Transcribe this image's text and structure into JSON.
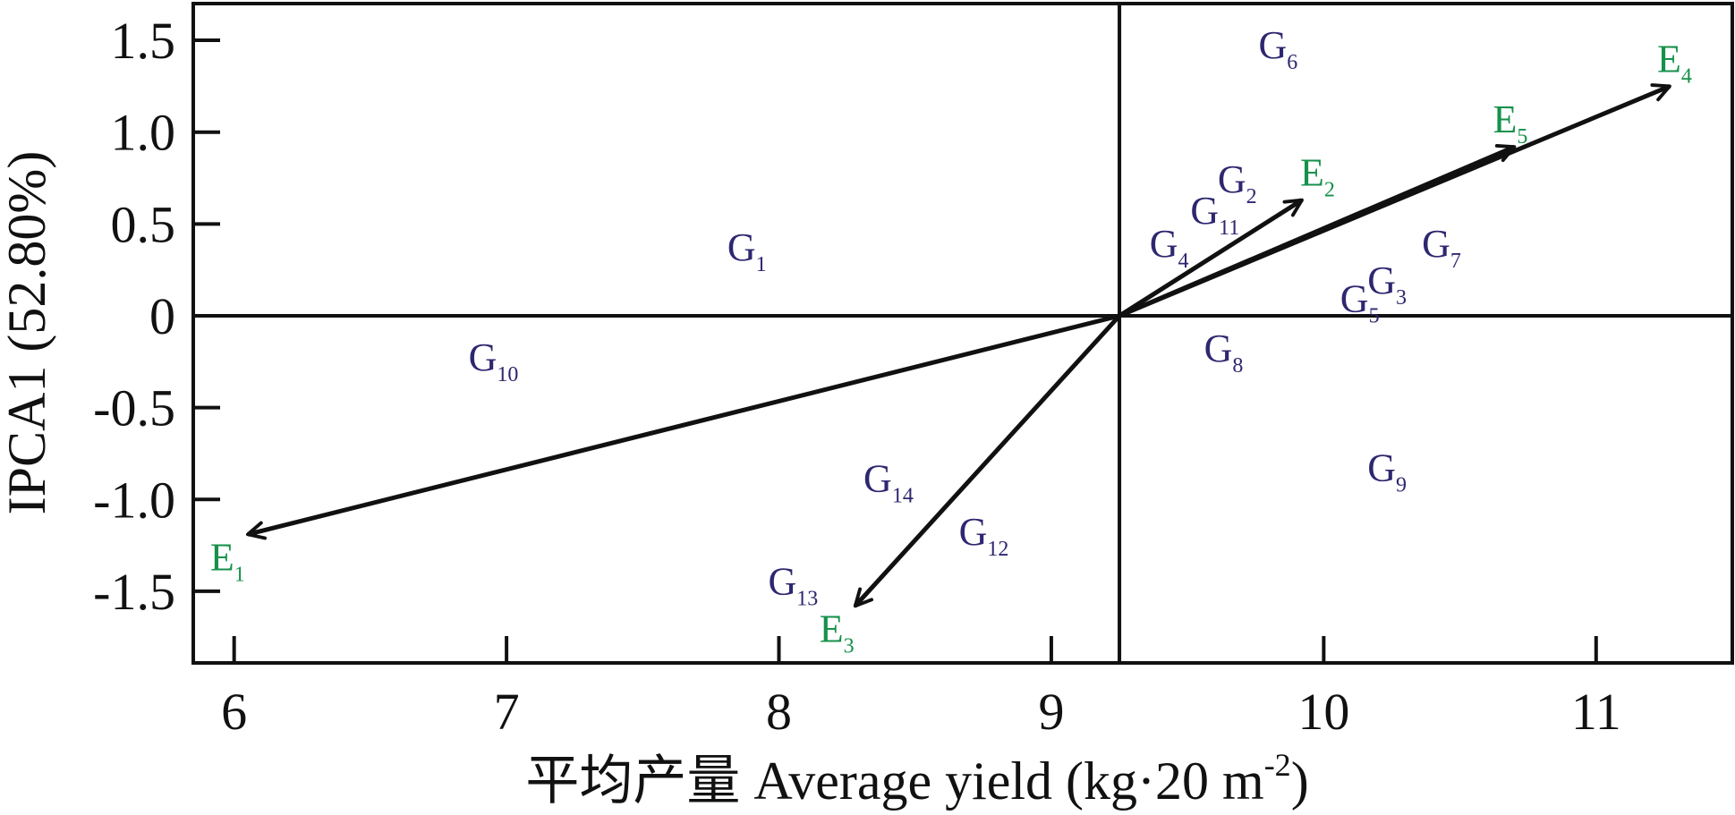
{
  "chart_data": {
    "type": "scatter",
    "subtype": "AMMI1 biplot",
    "xlabel": "平均产量 Average yield (kg·20 m",
    "xlabel_sup": "-2",
    "xlabel_end": ")",
    "ylabel": "IPCA1 (52.80%)",
    "xlim": [
      5.85,
      11.5
    ],
    "ylim": [
      -1.89,
      1.7
    ],
    "xticks": [
      6,
      7,
      8,
      9,
      10,
      11
    ],
    "yticks": [
      {
        "value": 1.5,
        "label": "1.5"
      },
      {
        "value": 1.0,
        "label": "1.0"
      },
      {
        "value": 0.5,
        "label": "0.5"
      },
      {
        "value": 0,
        "label": "0"
      },
      {
        "value": -0.5,
        "label": "-0.5"
      },
      {
        "value": -1.0,
        "label": "-1.0"
      },
      {
        "value": -1.5,
        "label": "-1.5"
      }
    ],
    "reference_lines": {
      "x": 9.25,
      "y": 0
    },
    "genotypes": [
      {
        "name": "G",
        "sub": "1",
        "x": 7.85,
        "y": 0.38
      },
      {
        "name": "G",
        "sub": "2",
        "x": 9.65,
        "y": 0.75
      },
      {
        "name": "G",
        "sub": "3",
        "x": 10.2,
        "y": 0.2
      },
      {
        "name": "G",
        "sub": "4",
        "x": 9.4,
        "y": 0.4
      },
      {
        "name": "G",
        "sub": "5",
        "x": 10.1,
        "y": 0.1
      },
      {
        "name": "G",
        "sub": "6",
        "x": 9.8,
        "y": 1.48
      },
      {
        "name": "G",
        "sub": "7",
        "x": 10.4,
        "y": 0.4
      },
      {
        "name": "G",
        "sub": "8",
        "x": 9.6,
        "y": -0.17
      },
      {
        "name": "G",
        "sub": "9",
        "x": 10.2,
        "y": -0.82
      },
      {
        "name": "G",
        "sub": "10",
        "x": 6.9,
        "y": -0.22
      },
      {
        "name": "G",
        "sub": "11",
        "x": 9.55,
        "y": 0.58
      },
      {
        "name": "G",
        "sub": "12",
        "x": 8.7,
        "y": -1.17
      },
      {
        "name": "G",
        "sub": "13",
        "x": 8.0,
        "y": -1.44
      },
      {
        "name": "G",
        "sub": "14",
        "x": 8.35,
        "y": -0.88
      }
    ],
    "environments": [
      {
        "name": "E",
        "sub": "1",
        "x": 6.05,
        "y": -1.19
      },
      {
        "name": "E",
        "sub": "2",
        "x": 9.92,
        "y": 0.63
      },
      {
        "name": "E",
        "sub": "3",
        "x": 8.28,
        "y": -1.58
      },
      {
        "name": "E",
        "sub": "4",
        "x": 11.27,
        "y": 1.25
      },
      {
        "name": "E",
        "sub": "5",
        "x": 10.7,
        "y": 0.92
      }
    ],
    "colors": {
      "genotype": "#2e2770",
      "environment": "#16914a",
      "axis": "#111111"
    }
  }
}
